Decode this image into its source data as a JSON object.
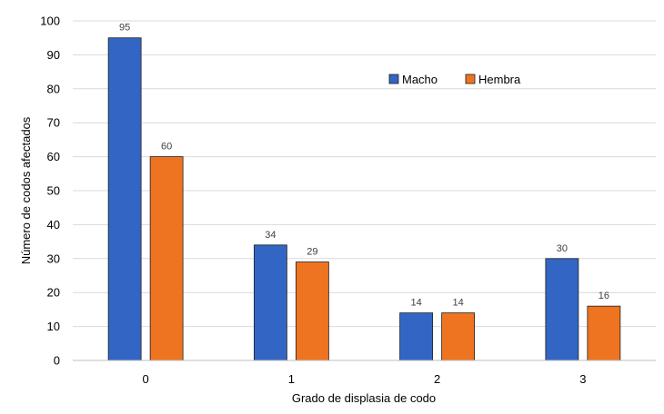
{
  "chart_data": {
    "type": "bar",
    "title": "",
    "xlabel": "Grado de displasia de codo",
    "ylabel": "Número de codos afectados",
    "categories": [
      "0",
      "1",
      "2",
      "3"
    ],
    "series": [
      {
        "name": "Macho",
        "values": [
          95,
          34,
          14,
          30
        ],
        "color": "#3366c4"
      },
      {
        "name": "Hembra",
        "values": [
          60,
          29,
          14,
          16
        ],
        "color": "#ee7421"
      }
    ],
    "ylim": [
      0,
      100
    ],
    "yticks": [
      0,
      10,
      20,
      30,
      40,
      50,
      60,
      70,
      80,
      90,
      100
    ],
    "grid": true,
    "legend": "top-right"
  }
}
